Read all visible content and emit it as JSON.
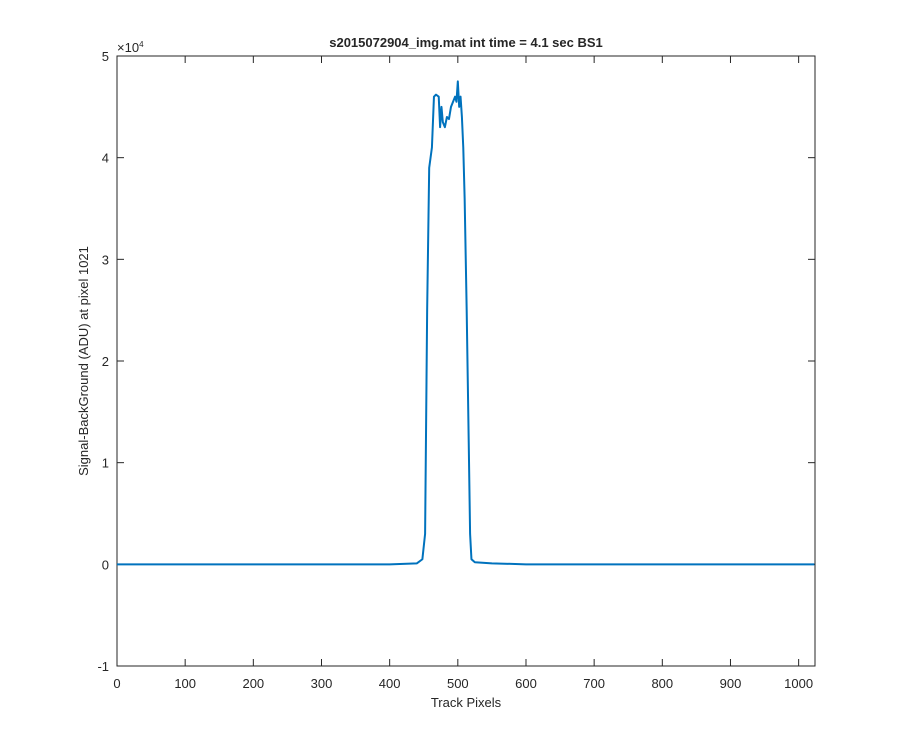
{
  "chart_data": {
    "type": "line",
    "title": "s2015072904_img.mat int time = 4.1 sec   BS1",
    "x_label": "Track Pixels",
    "y_label": "Signal-BackGround (ADU) at pixel 1021",
    "y_exponent": {
      "base": "×10",
      "power": "4"
    },
    "x": [
      0,
      50,
      100,
      150,
      200,
      250,
      300,
      350,
      400,
      440,
      448,
      452,
      455,
      458,
      462,
      465,
      468,
      472,
      474,
      476,
      478,
      481,
      484,
      487,
      490,
      493,
      496,
      498,
      500,
      502,
      504,
      506,
      508,
      510,
      513,
      516,
      518,
      520,
      525,
      550,
      600,
      650,
      700,
      750,
      800,
      850,
      900,
      950,
      1000,
      1023
    ],
    "series": [
      {
        "color": "#0072bd",
        "values": [
          0,
          0,
          0,
          0,
          0,
          0,
          0,
          0,
          0,
          0.01,
          0.05,
          0.3,
          2.5,
          3.9,
          4.1,
          4.6,
          4.62,
          4.6,
          4.3,
          4.5,
          4.35,
          4.3,
          4.4,
          4.38,
          4.5,
          4.55,
          4.6,
          4.55,
          4.75,
          4.5,
          4.6,
          4.4,
          4.1,
          3.6,
          2.5,
          1.2,
          0.3,
          0.05,
          0.02,
          0.01,
          0,
          0,
          0,
          0,
          0,
          0,
          0,
          0,
          0,
          0
        ]
      }
    ],
    "xlim": [
      0,
      1024
    ],
    "ylim": [
      -1,
      5
    ],
    "xticks": [
      0,
      100,
      200,
      300,
      400,
      500,
      600,
      700,
      800,
      900,
      1000
    ],
    "yticks": [
      -1,
      0,
      1,
      2,
      3,
      4,
      5
    ],
    "grid": false
  }
}
